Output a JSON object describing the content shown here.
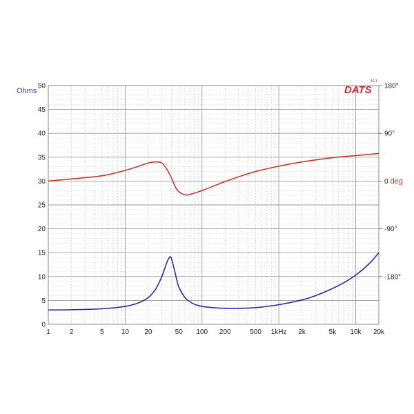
{
  "chart_data": {
    "type": "line",
    "title": "",
    "xscale": "log",
    "xlim": [
      1,
      20000
    ],
    "ylim": [
      0,
      50
    ],
    "y2lim": [
      -270,
      180
    ],
    "xlabel": "",
    "ylabel": "Ohms",
    "y2label": "deg",
    "grid": true,
    "logo": "DATS",
    "logo_version": "10.1",
    "x_ticks": [
      1,
      2,
      5,
      10,
      20,
      50,
      100,
      200,
      500,
      1000,
      2000,
      5000,
      10000,
      20000
    ],
    "x_tick_labels": [
      "1",
      "2",
      "5",
      "10",
      "20",
      "50",
      "100",
      "200",
      "500",
      "1kHz",
      "2k",
      "5k",
      "10k",
      "20k"
    ],
    "y_ticks": [
      0,
      5,
      10,
      15,
      20,
      25,
      30,
      35,
      40,
      45,
      50
    ],
    "y_tick_labels": [
      "0",
      "5",
      "10",
      "15",
      "20",
      "25",
      "30",
      "35",
      "40",
      "45",
      "50"
    ],
    "y2_ticks": [
      180,
      90,
      0,
      -90,
      -180
    ],
    "y2_tick_labels": [
      "180°",
      "90°",
      "0",
      "-90°",
      "-180°"
    ],
    "y2_zero_unit": "deg",
    "series": [
      {
        "name": "",
        "axis": "left",
        "color": "#2a2aa0",
        "x": [
          1,
          2,
          5,
          10,
          15,
          20,
          25,
          30,
          35,
          38,
          40,
          43,
          47,
          50,
          60,
          70,
          80,
          100,
          150,
          200,
          300,
          500,
          1000,
          2000,
          3000,
          5000,
          7000,
          10000,
          15000,
          20000
        ],
        "y": [
          3.0,
          3.05,
          3.25,
          3.75,
          4.5,
          5.6,
          7.4,
          10.0,
          13.0,
          14.1,
          13.8,
          11.9,
          9.3,
          7.8,
          5.6,
          4.7,
          4.2,
          3.75,
          3.45,
          3.35,
          3.35,
          3.5,
          4.1,
          5.1,
          6.0,
          7.5,
          8.7,
          10.3,
          12.7,
          15.0
        ]
      },
      {
        "name": "",
        "axis": "right",
        "color": "#c0392b",
        "x": [
          1,
          2,
          5,
          10,
          15,
          20,
          25,
          30,
          35,
          40,
          45,
          50,
          60,
          70,
          100,
          150,
          200,
          300,
          500,
          1000,
          2000,
          5000,
          10000,
          20000
        ],
        "y": [
          0,
          4,
          10,
          20,
          28,
          34,
          36,
          34,
          22,
          6,
          -11,
          -20,
          -26,
          -25,
          -18,
          -8,
          -1,
          8,
          18,
          28,
          36,
          44,
          48,
          52
        ]
      }
    ]
  }
}
